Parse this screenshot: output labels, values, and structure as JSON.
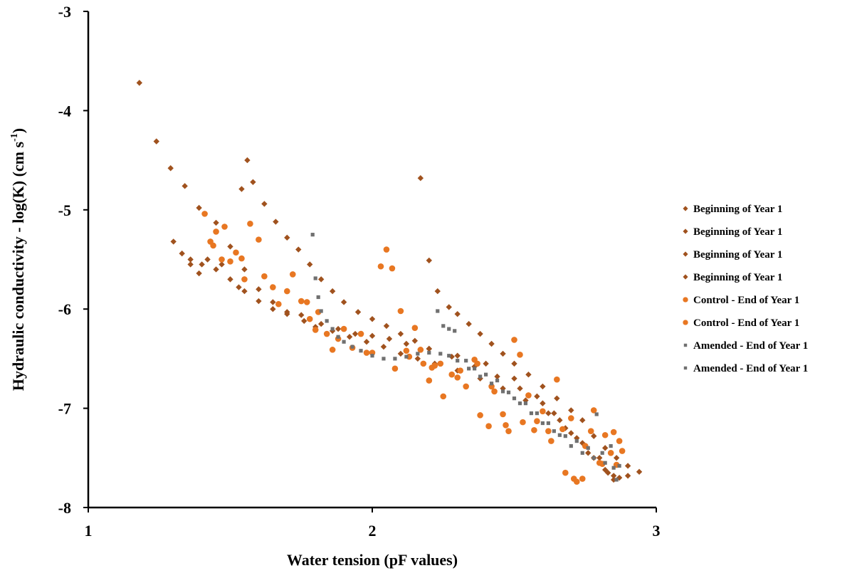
{
  "chart_data": {
    "type": "scatter",
    "title": "",
    "xlabel": "Water tension (pF values)",
    "ylabel_main": "Hydraulic conductivity - log(K) (cm s",
    "ylabel_sup": "-1",
    "ylabel_end": ")",
    "xlim": [
      1,
      3
    ],
    "ylim": [
      -8,
      -3
    ],
    "x_ticks": [
      1,
      2,
      3
    ],
    "y_ticks": [
      -3,
      -4,
      -5,
      -6,
      -7,
      -8
    ],
    "grid": false,
    "legend_position": "right",
    "colors": {
      "beginning": "#a0521e",
      "control": "#e87722",
      "amended": "#707070"
    },
    "series": [
      {
        "name": "Beginning of Year 1",
        "marker": "diamond",
        "color": "#a0521e",
        "points": [
          [
            1.18,
            -3.72
          ],
          [
            1.24,
            -4.31
          ],
          [
            1.29,
            -4.58
          ],
          [
            1.34,
            -4.76
          ],
          [
            1.39,
            -4.98
          ],
          [
            1.45,
            -5.13
          ],
          [
            1.5,
            -5.37
          ],
          [
            1.55,
            -5.6
          ],
          [
            1.6,
            -5.8
          ],
          [
            1.65,
            -5.93
          ],
          [
            1.7,
            -6.03
          ],
          [
            1.75,
            -6.06
          ],
          [
            1.8,
            -6.18
          ],
          [
            1.86,
            -6.22
          ],
          [
            1.92,
            -6.28
          ],
          [
            1.98,
            -6.33
          ],
          [
            2.04,
            -6.38
          ],
          [
            2.1,
            -6.45
          ],
          [
            2.16,
            -6.5
          ],
          [
            2.22,
            -6.55
          ],
          [
            2.3,
            -6.62
          ],
          [
            2.38,
            -6.7
          ],
          [
            2.46,
            -6.8
          ],
          [
            2.54,
            -6.92
          ],
          [
            2.62,
            -7.05
          ],
          [
            2.68,
            -7.2
          ],
          [
            2.74,
            -7.35
          ],
          [
            2.8,
            -7.5
          ],
          [
            2.85,
            -7.68
          ],
          [
            2.9,
            -7.68
          ]
        ]
      },
      {
        "name": "Beginning of Year 1",
        "marker": "diamond",
        "color": "#a0521e",
        "points": [
          [
            1.3,
            -5.32
          ],
          [
            1.33,
            -5.44
          ],
          [
            1.36,
            -5.5
          ],
          [
            1.4,
            -5.55
          ],
          [
            1.45,
            -5.6
          ],
          [
            1.5,
            -5.7
          ],
          [
            1.55,
            -5.82
          ],
          [
            1.6,
            -5.92
          ],
          [
            1.65,
            -6.0
          ],
          [
            1.7,
            -6.05
          ],
          [
            1.76,
            -6.12
          ],
          [
            1.82,
            -6.15
          ],
          [
            1.88,
            -6.2
          ],
          [
            1.94,
            -6.25
          ],
          [
            2.0,
            -6.27
          ],
          [
            2.06,
            -6.3
          ],
          [
            2.12,
            -6.35
          ],
          [
            2.2,
            -6.4
          ],
          [
            2.28,
            -6.48
          ],
          [
            2.36,
            -6.58
          ],
          [
            2.44,
            -6.68
          ],
          [
            2.52,
            -6.8
          ],
          [
            2.6,
            -6.95
          ],
          [
            2.66,
            -7.12
          ],
          [
            2.72,
            -7.3
          ],
          [
            2.78,
            -7.5
          ],
          [
            2.83,
            -7.65
          ],
          [
            2.87,
            -7.7
          ]
        ]
      },
      {
        "name": "Beginning of Year 1",
        "marker": "diamond",
        "color": "#a0521e",
        "points": [
          [
            1.36,
            -5.55
          ],
          [
            1.39,
            -5.64
          ],
          [
            1.42,
            -5.5
          ],
          [
            1.47,
            -5.55
          ],
          [
            1.53,
            -5.78
          ],
          [
            1.58,
            -4.72
          ],
          [
            1.62,
            -4.94
          ],
          [
            1.66,
            -5.12
          ],
          [
            1.7,
            -5.28
          ],
          [
            1.74,
            -5.4
          ],
          [
            1.78,
            -5.55
          ],
          [
            1.82,
            -5.7
          ],
          [
            1.86,
            -5.82
          ],
          [
            1.9,
            -5.93
          ],
          [
            1.95,
            -6.03
          ],
          [
            2.0,
            -6.1
          ],
          [
            2.05,
            -6.17
          ],
          [
            2.1,
            -6.25
          ],
          [
            2.15,
            -6.32
          ],
          [
            2.2,
            -6.4
          ],
          [
            2.3,
            -6.47
          ],
          [
            2.4,
            -6.55
          ],
          [
            2.5,
            -6.7
          ],
          [
            2.58,
            -6.88
          ],
          [
            2.64,
            -7.05
          ],
          [
            2.7,
            -7.25
          ],
          [
            2.76,
            -7.45
          ],
          [
            2.82,
            -7.62
          ],
          [
            2.85,
            -7.72
          ]
        ]
      },
      {
        "name": "Beginning of Year 1",
        "marker": "diamond",
        "color": "#a0521e",
        "points": [
          [
            1.56,
            -4.5
          ],
          [
            1.54,
            -4.79
          ],
          [
            2.17,
            -4.68
          ],
          [
            2.2,
            -5.51
          ],
          [
            2.23,
            -5.82
          ],
          [
            2.27,
            -5.98
          ],
          [
            2.3,
            -6.05
          ],
          [
            2.34,
            -6.15
          ],
          [
            2.38,
            -6.25
          ],
          [
            2.42,
            -6.35
          ],
          [
            2.46,
            -6.45
          ],
          [
            2.5,
            -6.55
          ],
          [
            2.55,
            -6.66
          ],
          [
            2.6,
            -6.78
          ],
          [
            2.65,
            -6.9
          ],
          [
            2.7,
            -7.02
          ],
          [
            2.74,
            -7.12
          ],
          [
            2.78,
            -7.28
          ],
          [
            2.82,
            -7.4
          ],
          [
            2.86,
            -7.5
          ],
          [
            2.9,
            -7.58
          ],
          [
            2.94,
            -7.64
          ]
        ]
      },
      {
        "name": "Control - End of Year 1",
        "marker": "circle",
        "color": "#e87722",
        "points": [
          [
            1.41,
            -5.04
          ],
          [
            1.43,
            -5.32
          ],
          [
            1.45,
            -5.22
          ],
          [
            1.48,
            -5.17
          ],
          [
            1.5,
            -5.52
          ],
          [
            1.52,
            -5.43
          ],
          [
            1.55,
            -5.7
          ],
          [
            1.57,
            -5.14
          ],
          [
            1.6,
            -5.3
          ],
          [
            1.62,
            -5.67
          ],
          [
            1.65,
            -5.78
          ],
          [
            1.7,
            -5.82
          ],
          [
            1.72,
            -5.65
          ],
          [
            1.75,
            -5.92
          ],
          [
            1.78,
            -6.1
          ],
          [
            1.81,
            -6.03
          ],
          [
            1.84,
            -6.25
          ],
          [
            1.86,
            -6.41
          ],
          [
            1.9,
            -6.2
          ],
          [
            1.93,
            -6.39
          ],
          [
            1.96,
            -6.25
          ],
          [
            2.0,
            -6.44
          ],
          [
            2.03,
            -5.57
          ],
          [
            2.05,
            -5.4
          ],
          [
            2.07,
            -5.59
          ],
          [
            2.1,
            -6.02
          ],
          [
            2.13,
            -6.48
          ],
          [
            2.15,
            -6.19
          ],
          [
            2.18,
            -6.55
          ],
          [
            2.2,
            -6.72
          ],
          [
            2.22,
            -6.57
          ],
          [
            2.25,
            -6.88
          ],
          [
            2.28,
            -6.66
          ],
          [
            2.3,
            -6.69
          ],
          [
            2.33,
            -6.78
          ],
          [
            2.36,
            -6.51
          ],
          [
            2.38,
            -7.07
          ],
          [
            2.41,
            -7.18
          ],
          [
            2.43,
            -6.83
          ],
          [
            2.46,
            -7.06
          ],
          [
            2.48,
            -7.23
          ],
          [
            2.5,
            -6.31
          ],
          [
            2.52,
            -6.46
          ],
          [
            2.55,
            -6.87
          ],
          [
            2.58,
            -7.13
          ],
          [
            2.6,
            -7.03
          ],
          [
            2.62,
            -7.23
          ],
          [
            2.65,
            -6.71
          ],
          [
            2.68,
            -7.65
          ],
          [
            2.7,
            -7.1
          ],
          [
            2.72,
            -7.74
          ],
          [
            2.75,
            -7.38
          ],
          [
            2.77,
            -7.23
          ],
          [
            2.8,
            -7.55
          ],
          [
            2.82,
            -7.27
          ],
          [
            2.84,
            -7.45
          ],
          [
            2.86,
            -7.57
          ],
          [
            2.88,
            -7.43
          ]
        ]
      },
      {
        "name": "Control - End of Year 1",
        "marker": "circle",
        "color": "#e87722",
        "points": [
          [
            1.44,
            -5.36
          ],
          [
            1.47,
            -5.5
          ],
          [
            1.54,
            -5.49
          ],
          [
            1.67,
            -5.95
          ],
          [
            1.77,
            -5.93
          ],
          [
            1.8,
            -6.21
          ],
          [
            1.88,
            -6.3
          ],
          [
            1.98,
            -6.44
          ],
          [
            2.08,
            -6.6
          ],
          [
            2.12,
            -6.42
          ],
          [
            2.17,
            -6.41
          ],
          [
            2.21,
            -6.59
          ],
          [
            2.24,
            -6.55
          ],
          [
            2.31,
            -6.62
          ],
          [
            2.37,
            -6.55
          ],
          [
            2.42,
            -6.78
          ],
          [
            2.47,
            -7.17
          ],
          [
            2.53,
            -7.14
          ],
          [
            2.57,
            -7.22
          ],
          [
            2.63,
            -7.33
          ],
          [
            2.67,
            -7.21
          ],
          [
            2.71,
            -7.71
          ],
          [
            2.74,
            -7.71
          ],
          [
            2.78,
            -7.02
          ],
          [
            2.81,
            -7.56
          ],
          [
            2.85,
            -7.24
          ],
          [
            2.87,
            -7.33
          ]
        ]
      },
      {
        "name": "Amended - End of Year 1",
        "marker": "square",
        "color": "#707070",
        "points": [
          [
            1.79,
            -5.25
          ],
          [
            1.8,
            -5.69
          ],
          [
            1.81,
            -5.88
          ],
          [
            1.82,
            -6.02
          ],
          [
            1.84,
            -6.12
          ],
          [
            1.86,
            -6.2
          ],
          [
            1.88,
            -6.28
          ],
          [
            1.9,
            -6.33
          ],
          [
            1.93,
            -6.38
          ],
          [
            1.96,
            -6.42
          ],
          [
            2.0,
            -6.47
          ],
          [
            2.04,
            -6.5
          ],
          [
            2.08,
            -6.5
          ],
          [
            2.12,
            -6.48
          ],
          [
            2.16,
            -6.45
          ],
          [
            2.2,
            -6.44
          ],
          [
            2.24,
            -6.45
          ],
          [
            2.27,
            -6.47
          ],
          [
            2.3,
            -6.52
          ],
          [
            2.34,
            -6.6
          ],
          [
            2.38,
            -6.68
          ],
          [
            2.42,
            -6.75
          ],
          [
            2.46,
            -6.83
          ],
          [
            2.5,
            -6.9
          ],
          [
            2.54,
            -6.95
          ],
          [
            2.58,
            -7.05
          ],
          [
            2.62,
            -7.15
          ],
          [
            2.66,
            -7.27
          ],
          [
            2.7,
            -7.38
          ],
          [
            2.74,
            -7.45
          ],
          [
            2.78,
            -7.5
          ],
          [
            2.82,
            -7.55
          ],
          [
            2.85,
            -7.6
          ],
          [
            2.86,
            -7.72
          ]
        ]
      },
      {
        "name": "Amended - End of Year 1",
        "marker": "square",
        "color": "#707070",
        "points": [
          [
            2.23,
            -6.02
          ],
          [
            2.25,
            -6.17
          ],
          [
            2.27,
            -6.2
          ],
          [
            2.29,
            -6.22
          ],
          [
            2.33,
            -6.52
          ],
          [
            2.36,
            -6.6
          ],
          [
            2.4,
            -6.66
          ],
          [
            2.44,
            -6.72
          ],
          [
            2.48,
            -6.84
          ],
          [
            2.52,
            -6.95
          ],
          [
            2.56,
            -7.05
          ],
          [
            2.6,
            -7.15
          ],
          [
            2.64,
            -7.23
          ],
          [
            2.68,
            -7.28
          ],
          [
            2.72,
            -7.33
          ],
          [
            2.76,
            -7.4
          ],
          [
            2.79,
            -7.06
          ],
          [
            2.81,
            -7.45
          ],
          [
            2.84,
            -7.38
          ],
          [
            2.87,
            -7.58
          ]
        ]
      }
    ]
  }
}
